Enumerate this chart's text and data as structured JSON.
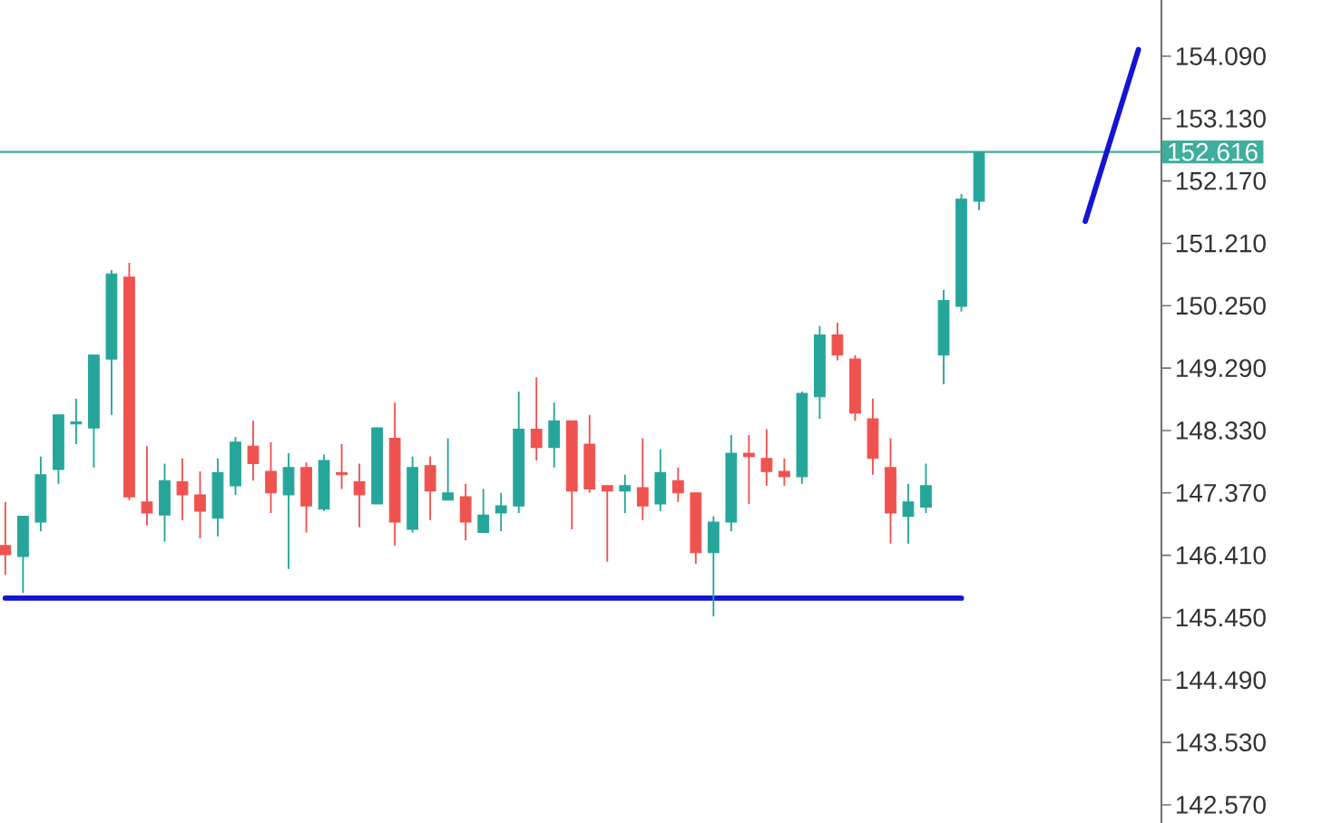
{
  "chart_data": {
    "type": "candlestick",
    "tick_labels": "y",
    "ylim": [
      142.29,
      154.955
    ],
    "yticks": [
      {
        "value": 142.57,
        "label": "142.570"
      },
      {
        "value": 143.53,
        "label": "143.530"
      },
      {
        "value": 144.49,
        "label": "144.490"
      },
      {
        "value": 145.45,
        "label": "145.450"
      },
      {
        "value": 146.41,
        "label": "146.410"
      },
      {
        "value": 147.37,
        "label": "147.370"
      },
      {
        "value": 148.33,
        "label": "148.330"
      },
      {
        "value": 149.29,
        "label": "149.290"
      },
      {
        "value": 150.25,
        "label": "150.250"
      },
      {
        "value": 151.21,
        "label": "151.210"
      },
      {
        "value": 152.17,
        "label": "152.170"
      },
      {
        "value": 153.13,
        "label": "153.130"
      },
      {
        "value": 154.09,
        "label": "154.090"
      }
    ],
    "categories": [
      null,
      null,
      null,
      null,
      null,
      null,
      null,
      null,
      null,
      null,
      null,
      null,
      null,
      null,
      null,
      null,
      null,
      null,
      null,
      null,
      null,
      null,
      null,
      null,
      null,
      null,
      null,
      null,
      null,
      null,
      null,
      null,
      null,
      null,
      null,
      null,
      null,
      null,
      null,
      null,
      null,
      null,
      null,
      null,
      null,
      null,
      null,
      null,
      null,
      null,
      null,
      null,
      null,
      null,
      null,
      null,
      null,
      null,
      null,
      null,
      null,
      null,
      null,
      null,
      null,
      null
    ],
    "ohlc": [
      [
        146.56,
        147.23,
        146.11,
        146.42
      ],
      [
        146.39,
        147.01,
        145.83,
        147.01
      ],
      [
        146.92,
        147.93,
        146.78,
        147.65
      ],
      [
        147.73,
        148.57,
        147.51,
        148.57
      ],
      [
        148.43,
        148.82,
        148.12,
        148.46
      ],
      [
        148.37,
        149.49,
        147.76,
        149.49
      ],
      [
        149.43,
        150.8,
        148.57,
        150.74
      ],
      [
        150.69,
        150.91,
        147.26,
        147.31
      ],
      [
        147.23,
        148.09,
        146.87,
        147.06
      ],
      [
        147.03,
        147.82,
        146.62,
        147.56
      ],
      [
        147.54,
        147.9,
        146.95,
        147.34
      ],
      [
        147.34,
        147.7,
        146.67,
        147.09
      ],
      [
        146.98,
        147.9,
        146.7,
        147.68
      ],
      [
        147.48,
        148.23,
        147.34,
        148.15
      ],
      [
        148.09,
        148.48,
        147.56,
        147.82
      ],
      [
        147.7,
        148.15,
        147.06,
        147.37
      ],
      [
        147.34,
        147.98,
        146.2,
        147.76
      ],
      [
        147.76,
        147.84,
        146.76,
        147.17
      ],
      [
        147.12,
        147.96,
        147.09,
        147.87
      ],
      [
        147.68,
        148.12,
        147.43,
        147.65
      ],
      [
        147.54,
        147.82,
        146.84,
        147.34
      ],
      [
        147.2,
        148.37,
        147.2,
        148.37
      ],
      [
        148.21,
        148.76,
        146.56,
        146.92
      ],
      [
        146.81,
        147.93,
        146.76,
        147.76
      ],
      [
        147.79,
        147.93,
        146.95,
        147.4
      ],
      [
        147.26,
        148.21,
        147.26,
        147.37
      ],
      [
        147.31,
        147.51,
        146.64,
        146.92
      ],
      [
        146.76,
        147.43,
        146.76,
        147.03
      ],
      [
        147.06,
        147.37,
        146.78,
        147.17
      ],
      [
        147.17,
        148.93,
        147.06,
        148.35
      ],
      [
        148.35,
        149.15,
        147.87,
        148.07
      ],
      [
        148.07,
        148.76,
        147.76,
        148.48
      ],
      [
        148.48,
        148.48,
        146.81,
        147.4
      ],
      [
        148.12,
        148.57,
        147.37,
        147.43
      ],
      [
        147.48,
        147.48,
        146.31,
        147.4
      ],
      [
        147.4,
        147.65,
        147.06,
        147.48
      ],
      [
        147.45,
        148.21,
        146.95,
        147.17
      ],
      [
        147.2,
        148.04,
        147.09,
        147.68
      ],
      [
        147.56,
        147.76,
        147.23,
        147.37
      ],
      [
        147.37,
        147.37,
        146.28,
        146.45
      ],
      [
        146.45,
        147.01,
        145.47,
        146.92
      ],
      [
        146.92,
        148.26,
        146.78,
        147.98
      ],
      [
        147.98,
        148.26,
        147.2,
        147.93
      ],
      [
        147.9,
        148.35,
        147.48,
        147.7
      ],
      [
        147.7,
        147.9,
        147.48,
        147.62
      ],
      [
        147.62,
        148.93,
        147.51,
        148.9
      ],
      [
        148.85,
        149.94,
        148.51,
        149.8
      ],
      [
        149.8,
        149.99,
        149.41,
        149.49
      ],
      [
        149.43,
        149.49,
        148.48,
        148.6
      ],
      [
        148.51,
        148.82,
        147.65,
        147.9
      ],
      [
        147.76,
        148.21,
        146.59,
        147.06
      ],
      [
        147.01,
        147.51,
        146.59,
        147.23
      ],
      [
        147.15,
        147.82,
        147.06,
        147.48
      ],
      [
        149.49,
        150.49,
        149.04,
        150.33
      ],
      [
        150.24,
        151.97,
        150.16,
        151.89
      ],
      [
        151.86,
        152.616,
        151.72,
        152.616
      ],
      null,
      null,
      null,
      null,
      null,
      null,
      null,
      null,
      null,
      null
    ],
    "colors": [
      "#ef5350",
      "#26a69a",
      "#26a69a",
      "#26a69a",
      "#26a69a",
      "#26a69a",
      "#26a69a",
      "#ef5350",
      "#ef5350",
      "#26a69a",
      "#ef5350",
      "#ef5350",
      "#26a69a",
      "#26a69a",
      "#ef5350",
      "#ef5350",
      "#26a69a",
      "#ef5350",
      "#26a69a",
      "#ef5350",
      "#ef5350",
      "#26a69a",
      "#ef5350",
      "#26a69a",
      "#ef5350",
      "#26a69a",
      "#ef5350",
      "#26a69a",
      "#26a69a",
      "#26a69a",
      "#ef5350",
      "#26a69a",
      "#ef5350",
      "#ef5350",
      "#ef5350",
      "#26a69a",
      "#ef5350",
      "#26a69a",
      "#ef5350",
      "#ef5350",
      "#26a69a",
      "#26a69a",
      "#ef5350",
      "#ef5350",
      "#ef5350",
      "#26a69a",
      "#26a69a",
      "#ef5350",
      "#ef5350",
      "#ef5350",
      "#ef5350",
      "#26a69a",
      "#26a69a",
      "#26a69a",
      "#26a69a",
      "#26a69a",
      null,
      null,
      null,
      null,
      null,
      null,
      null,
      null,
      null,
      null
    ],
    "series": [
      {
        "type": "line",
        "color": "#1414d2",
        "values": [
          145.75,
          145.75,
          145.75,
          145.75,
          145.75,
          145.75,
          145.75,
          145.75,
          145.75,
          145.75,
          145.75,
          145.75,
          145.75,
          145.75,
          145.75,
          145.75,
          145.75,
          145.75,
          145.75,
          145.75,
          145.75,
          145.75,
          145.75,
          145.75,
          145.75,
          145.75,
          145.75,
          145.75,
          145.75,
          145.75,
          145.75,
          145.75,
          145.75,
          145.75,
          145.75,
          145.75,
          145.75,
          145.75,
          145.75,
          145.75,
          145.75,
          145.75,
          145.75,
          145.75,
          145.75,
          145.75,
          145.75,
          145.75,
          145.75,
          145.75,
          145.75,
          145.75,
          145.75,
          145.75,
          145.75,
          null,
          null,
          null,
          null,
          null,
          null,
          null,
          null,
          null,
          null,
          null
        ]
      },
      {
        "type": "line",
        "color": "#1414d2",
        "values": [
          null,
          null,
          null,
          null,
          null,
          null,
          null,
          null,
          null,
          null,
          null,
          null,
          null,
          null,
          null,
          null,
          null,
          null,
          null,
          null,
          null,
          null,
          null,
          null,
          null,
          null,
          null,
          null,
          null,
          null,
          null,
          null,
          null,
          null,
          null,
          null,
          null,
          null,
          null,
          null,
          null,
          null,
          null,
          null,
          null,
          null,
          null,
          null,
          null,
          null,
          null,
          null,
          null,
          null,
          null,
          null,
          null,
          null,
          null,
          null,
          null,
          151.55,
          null,
          null,
          154.19,
          null
        ]
      }
    ],
    "ref_lines": [
      {
        "axis": "y",
        "value": 152.616,
        "label": "152.616",
        "color": "#3fae9c"
      }
    ]
  }
}
